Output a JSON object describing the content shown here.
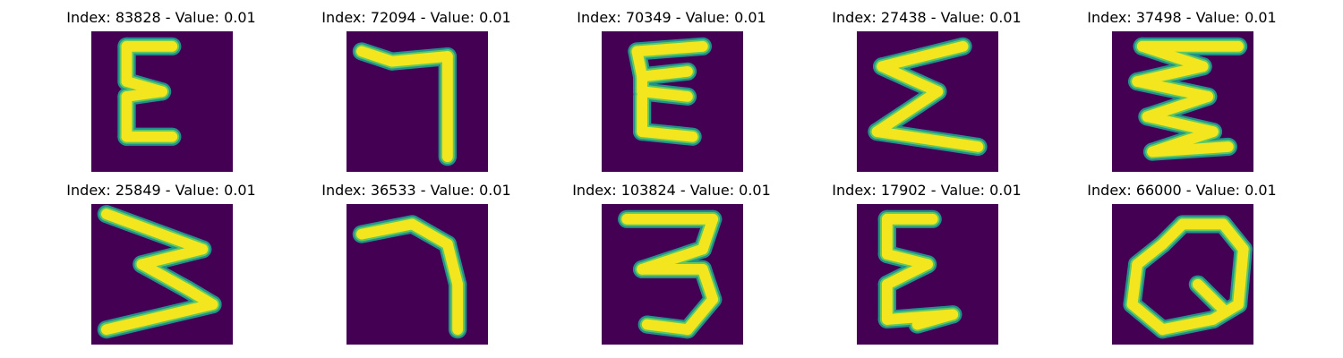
{
  "colors": {
    "background": "#440154",
    "stroke_core": "#f4e61e",
    "stroke_mid": "#5ec962",
    "stroke_edge": "#21918c"
  },
  "panels": [
    {
      "title": "Index: 83828 - Value: 0.01",
      "glyph": [
        [
          [
            7,
            3
          ],
          [
            16,
            3
          ]
        ],
        [
          [
            7,
            3
          ],
          [
            7,
            10
          ]
        ],
        [
          [
            7,
            10
          ],
          [
            14,
            12
          ]
        ],
        [
          [
            14,
            12
          ],
          [
            7,
            13
          ]
        ],
        [
          [
            7,
            13
          ],
          [
            7,
            21
          ]
        ],
        [
          [
            7,
            21
          ],
          [
            16,
            21
          ]
        ]
      ]
    },
    {
      "title": "Index: 72094 - Value: 0.01",
      "glyph": [
        [
          [
            3,
            4
          ],
          [
            9,
            6
          ]
        ],
        [
          [
            9,
            6
          ],
          [
            20,
            5
          ]
        ],
        [
          [
            20,
            5
          ],
          [
            20,
            25
          ]
        ]
      ]
    },
    {
      "title": "Index: 70349 - Value: 0.01",
      "glyph": [
        [
          [
            7,
            4
          ],
          [
            20,
            3
          ]
        ],
        [
          [
            7,
            4
          ],
          [
            8,
            9
          ]
        ],
        [
          [
            8,
            9
          ],
          [
            17,
            8
          ]
        ],
        [
          [
            8,
            9
          ],
          [
            8,
            12
          ]
        ],
        [
          [
            8,
            12
          ],
          [
            17,
            13
          ]
        ],
        [
          [
            8,
            13
          ],
          [
            8,
            20
          ]
        ],
        [
          [
            8,
            20
          ],
          [
            18,
            21
          ]
        ]
      ]
    },
    {
      "title": "Index: 27438 - Value: 0.01",
      "glyph": [
        [
          [
            5,
            7
          ],
          [
            21,
            3
          ]
        ],
        [
          [
            5,
            7
          ],
          [
            16,
            12
          ]
        ],
        [
          [
            16,
            12
          ],
          [
            4,
            20
          ]
        ],
        [
          [
            4,
            20
          ],
          [
            24,
            23
          ]
        ]
      ]
    },
    {
      "title": "Index: 37498 - Value: 0.01",
      "glyph": [
        [
          [
            6,
            3
          ],
          [
            25,
            3
          ]
        ],
        [
          [
            6,
            3
          ],
          [
            18,
            7
          ]
        ],
        [
          [
            18,
            7
          ],
          [
            5,
            10
          ]
        ],
        [
          [
            5,
            10
          ],
          [
            19,
            13
          ]
        ],
        [
          [
            19,
            13
          ],
          [
            7,
            17
          ]
        ],
        [
          [
            7,
            17
          ],
          [
            20,
            20
          ]
        ],
        [
          [
            20,
            20
          ],
          [
            8,
            24
          ]
        ],
        [
          [
            8,
            24
          ],
          [
            23,
            23
          ]
        ]
      ]
    },
    {
      "title": "Index: 25849 - Value: 0.01",
      "glyph": [
        [
          [
            3,
            2
          ],
          [
            22,
            9
          ]
        ],
        [
          [
            22,
            9
          ],
          [
            10,
            12
          ]
        ],
        [
          [
            10,
            12
          ],
          [
            19,
            17
          ]
        ],
        [
          [
            19,
            17
          ],
          [
            24,
            20
          ]
        ],
        [
          [
            24,
            20
          ],
          [
            3,
            25
          ]
        ]
      ]
    },
    {
      "title": "Index: 36533 - Value: 0.01",
      "glyph": [
        [
          [
            3,
            6
          ],
          [
            13,
            4
          ]
        ],
        [
          [
            13,
            4
          ],
          [
            20,
            8
          ]
        ],
        [
          [
            20,
            8
          ],
          [
            22,
            16
          ]
        ],
        [
          [
            22,
            16
          ],
          [
            22,
            25
          ]
        ]
      ]
    },
    {
      "title": "Index: 103824 - Value: 0.01",
      "glyph": [
        [
          [
            5,
            3
          ],
          [
            22,
            3
          ]
        ],
        [
          [
            22,
            3
          ],
          [
            20,
            9
          ]
        ],
        [
          [
            20,
            9
          ],
          [
            8,
            13
          ]
        ],
        [
          [
            8,
            13
          ],
          [
            20,
            13
          ]
        ],
        [
          [
            20,
            13
          ],
          [
            22,
            19
          ]
        ],
        [
          [
            22,
            19
          ],
          [
            17,
            25
          ]
        ],
        [
          [
            17,
            25
          ],
          [
            9,
            24
          ]
        ]
      ]
    },
    {
      "title": "Index: 17902 - Value: 0.01",
      "glyph": [
        [
          [
            6,
            3
          ],
          [
            15,
            3
          ]
        ],
        [
          [
            6,
            3
          ],
          [
            6,
            10
          ]
        ],
        [
          [
            6,
            10
          ],
          [
            14,
            12
          ]
        ],
        [
          [
            14,
            12
          ],
          [
            6,
            16
          ]
        ],
        [
          [
            6,
            16
          ],
          [
            6,
            23
          ]
        ],
        [
          [
            6,
            23
          ],
          [
            19,
            22
          ]
        ],
        [
          [
            19,
            22
          ],
          [
            12,
            24
          ]
        ]
      ]
    },
    {
      "title": "Index: 66000 - Value: 0.01",
      "glyph": [
        [
          [
            14,
            4
          ],
          [
            22,
            4
          ]
        ],
        [
          [
            22,
            4
          ],
          [
            26,
            9
          ]
        ],
        [
          [
            26,
            9
          ],
          [
            25,
            20
          ]
        ],
        [
          [
            25,
            20
          ],
          [
            20,
            23
          ]
        ],
        [
          [
            20,
            23
          ],
          [
            10,
            25
          ]
        ],
        [
          [
            10,
            25
          ],
          [
            4,
            20
          ]
        ],
        [
          [
            4,
            20
          ],
          [
            5,
            12
          ]
        ],
        [
          [
            5,
            12
          ],
          [
            10,
            8
          ]
        ],
        [
          [
            10,
            8
          ],
          [
            14,
            4
          ]
        ],
        [
          [
            17,
            16
          ],
          [
            22,
            21
          ]
        ]
      ]
    }
  ]
}
